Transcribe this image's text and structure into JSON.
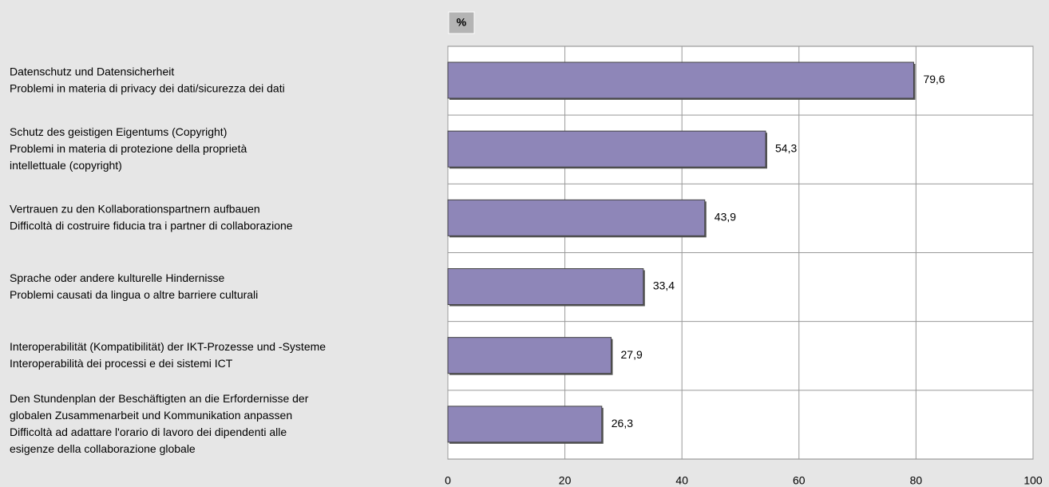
{
  "chart_data": {
    "type": "bar",
    "orientation": "horizontal",
    "xlabel": "%",
    "categories": [
      [
        "Datenschutz und Datensicherheit",
        "Problemi in materia di privacy dei dati/sicurezza dei dati"
      ],
      [
        "Schutz des geistigen Eigentums (Copyright)",
        "Problemi in materia di protezione della proprietà",
        "intellettuale (copyright)"
      ],
      [
        "Vertrauen zu den Kollaborationspartnern aufbauen",
        "Difficoltà di costruire fiducia tra i partner di collaborazione"
      ],
      [
        "Sprache oder andere kulturelle Hindernisse",
        "Problemi causati da lingua o altre barriere culturali"
      ],
      [
        "Interoperabilität (Kompatibilität) der IKT-Prozesse und -Systeme",
        "Interoperabilità dei processi e dei sistemi ICT"
      ],
      [
        "Den Stundenplan der Beschäftigten an die Erfordernisse der",
        "globalen Zusammenarbeit und Kommunikation anpassen",
        "Difficoltà ad adattare l'orario di lavoro dei dipendenti alle",
        "esigenze della collaborazione globale"
      ]
    ],
    "values": [
      79.6,
      54.3,
      43.9,
      33.4,
      27.9,
      26.3
    ],
    "value_labels": [
      "79,6",
      "54,3",
      "43,9",
      "33,4",
      "27,9",
      "26,3"
    ],
    "color": "#8e86b8",
    "xlim": [
      0,
      100
    ],
    "xticks": [
      0,
      20,
      40,
      60,
      80,
      100
    ],
    "grid": true
  }
}
